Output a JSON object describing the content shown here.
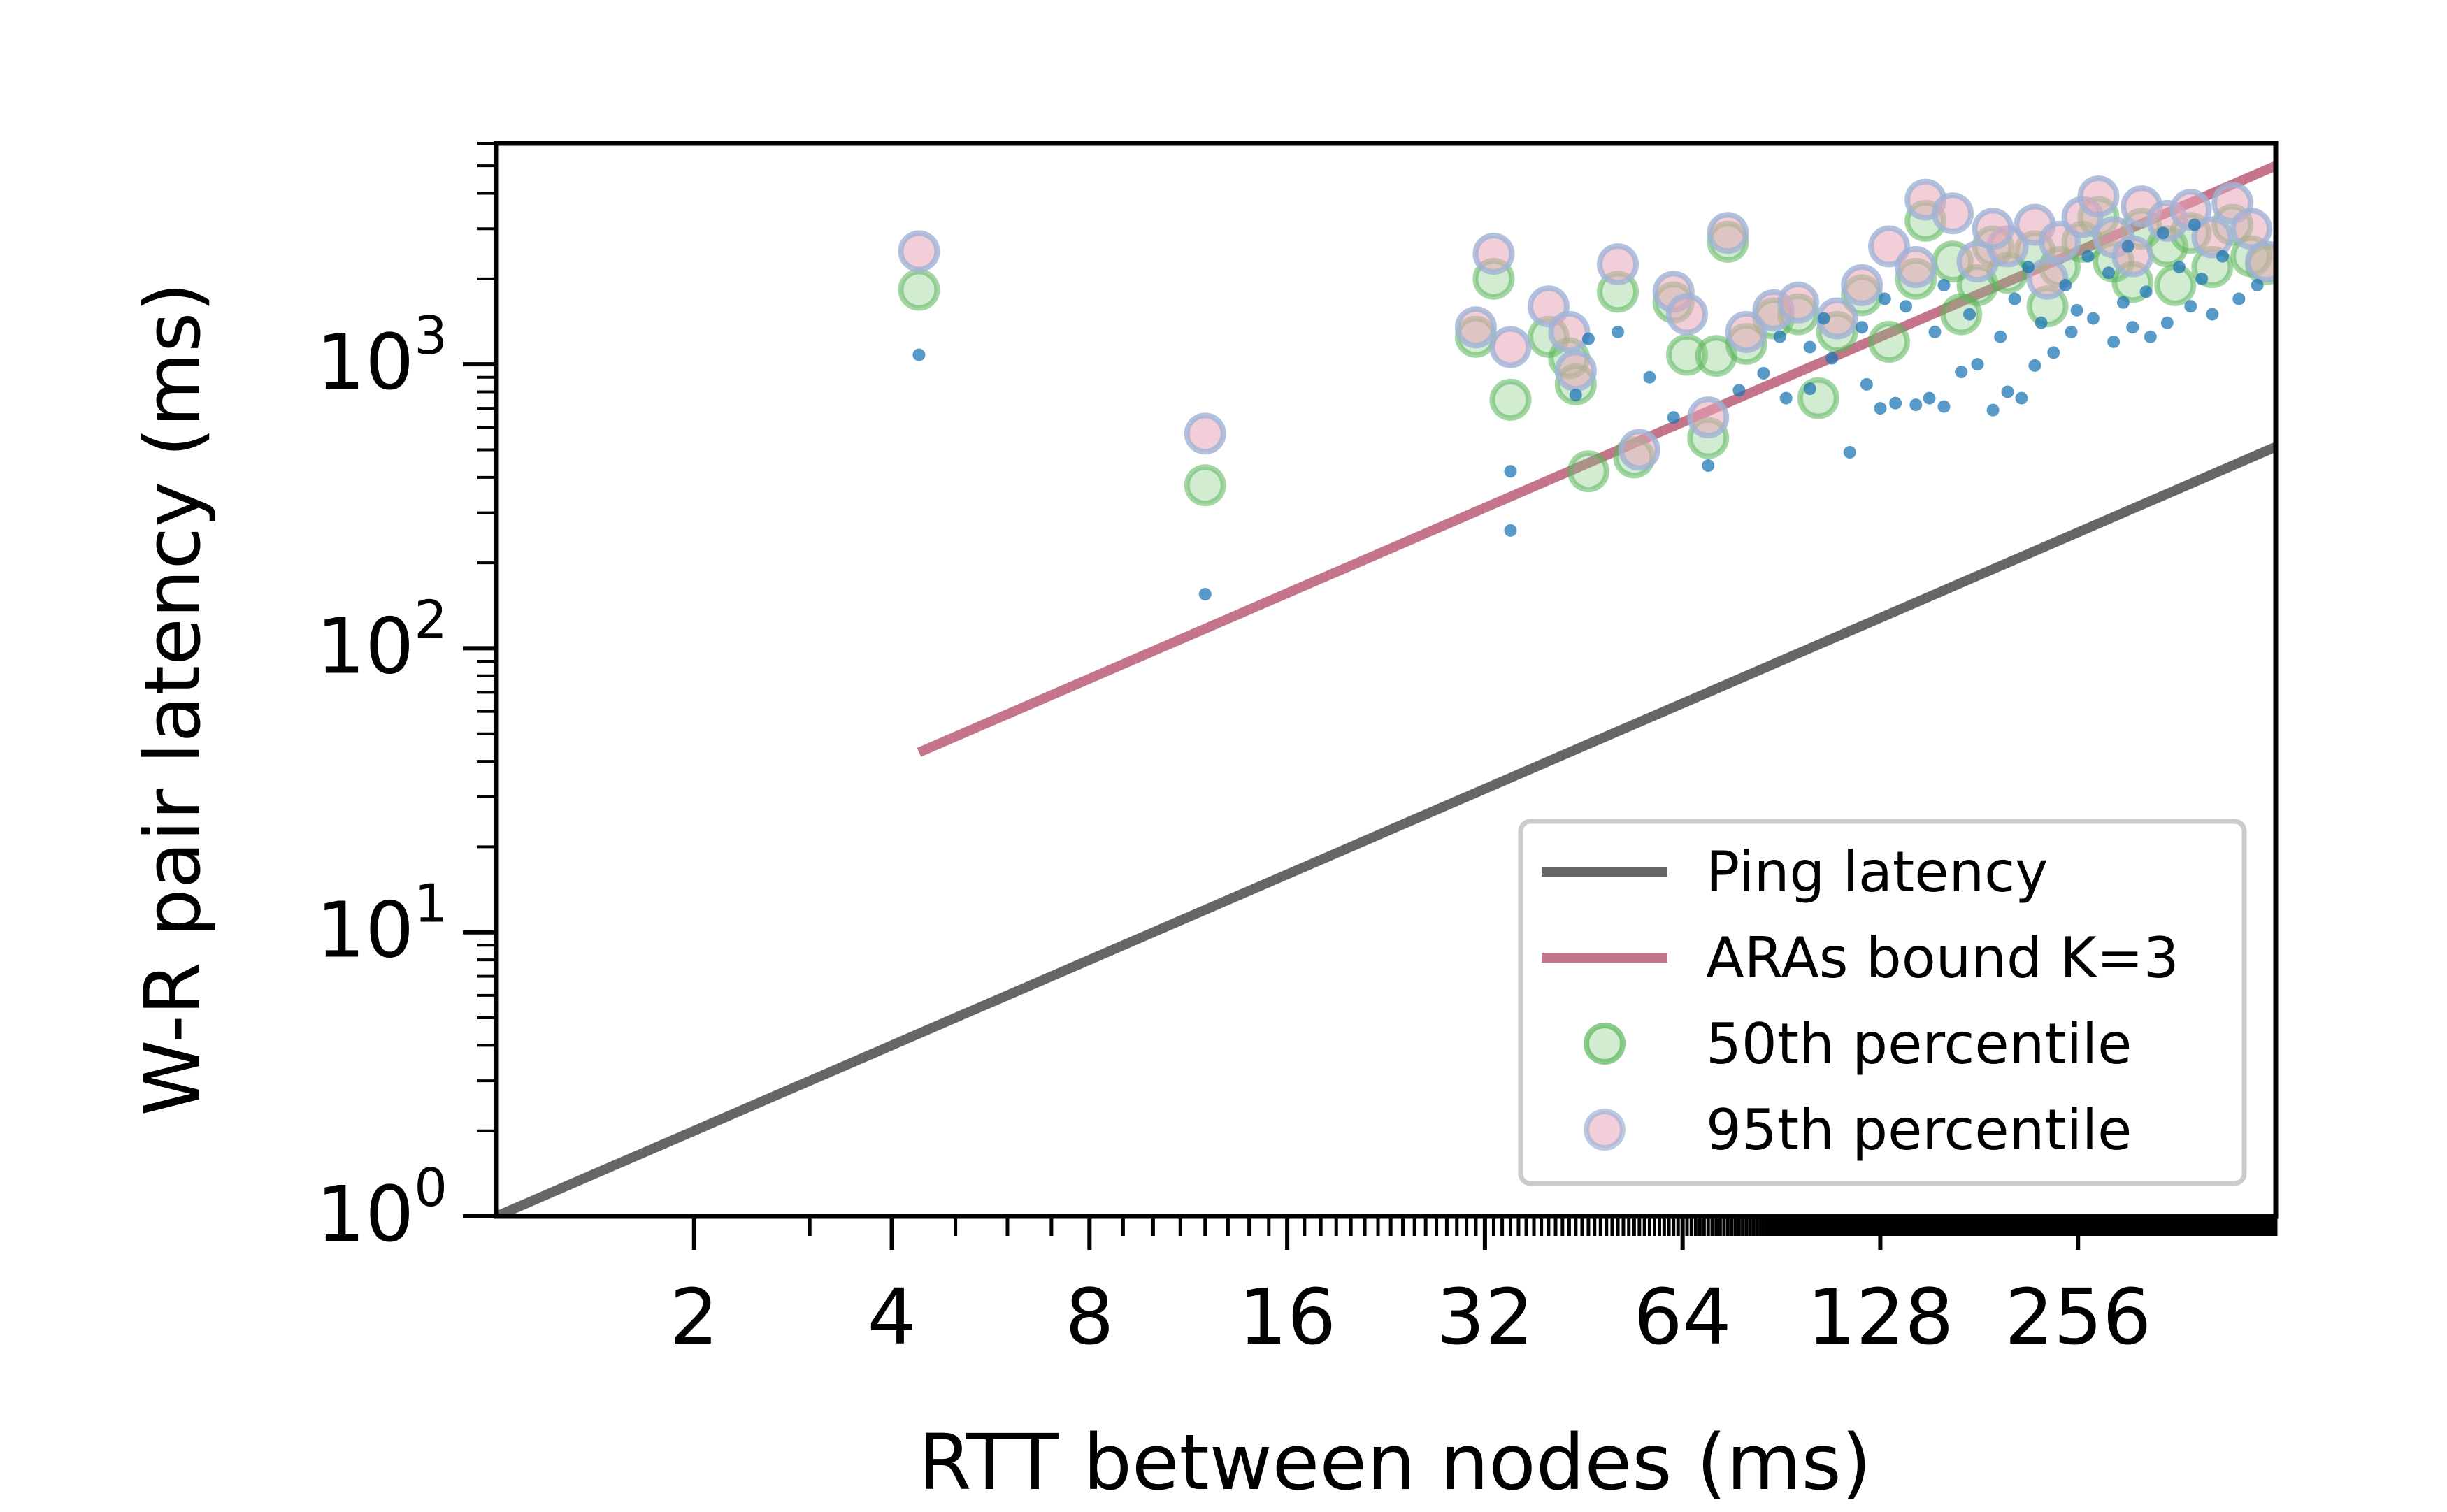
{
  "chart_data": {
    "type": "scatter",
    "xlabel": "RTT between nodes (ms)",
    "ylabel": "W-R pair latency (ms)",
    "xscale": "log2",
    "yscale": "log10",
    "xlim": [
      1,
      512
    ],
    "ylim": [
      1,
      6000
    ],
    "x_ticks": [
      {
        "value": 2,
        "label": "2"
      },
      {
        "value": 4,
        "label": "4"
      },
      {
        "value": 8,
        "label": "8"
      },
      {
        "value": 16,
        "label": "16"
      },
      {
        "value": 32,
        "label": "32"
      },
      {
        "value": 64,
        "label": "64"
      },
      {
        "value": 128,
        "label": "128"
      },
      {
        "value": 256,
        "label": "256"
      }
    ],
    "y_ticks": [
      {
        "value": 1,
        "base": "10",
        "exp": "0"
      },
      {
        "value": 10,
        "base": "10",
        "exp": "1"
      },
      {
        "value": 100,
        "base": "10",
        "exp": "2"
      },
      {
        "value": 1000,
        "base": "10",
        "exp": "3"
      }
    ],
    "grid": false,
    "legend_position": "lower-right",
    "legend": [
      {
        "label": "Ping latency",
        "kind": "line",
        "color": "#666666"
      },
      {
        "label": "ARAs bound K=3",
        "kind": "line",
        "color": "#c4758a"
      },
      {
        "label": "50th percentile",
        "kind": "marker",
        "color": "#7fc97f"
      },
      {
        "label": "95th percentile",
        "kind": "marker",
        "color": "#e8a5b8"
      }
    ],
    "lines": [
      {
        "name": "Ping latency",
        "color": "#666666",
        "x": [
          1,
          512
        ],
        "y": [
          1,
          512
        ]
      },
      {
        "name": "ARAs bound K=3",
        "color": "#c4758a",
        "x": [
          4.4,
          512
        ],
        "y": [
          43,
          5000
        ]
      }
    ],
    "series": [
      {
        "name": "50th percentile",
        "color": "#7fc97f",
        "points": [
          [
            4.4,
            1830
          ],
          [
            12,
            375
          ],
          [
            31,
            1250
          ],
          [
            33,
            2000
          ],
          [
            35,
            750
          ],
          [
            40,
            1250
          ],
          [
            43,
            1050
          ],
          [
            44,
            850
          ],
          [
            46,
            420
          ],
          [
            51,
            1800
          ],
          [
            54,
            470
          ],
          [
            62,
            1650
          ],
          [
            65,
            1080
          ],
          [
            70,
            550
          ],
          [
            72,
            1070
          ],
          [
            75,
            2700
          ],
          [
            80,
            1180
          ],
          [
            88,
            1450
          ],
          [
            96,
            1500
          ],
          [
            103,
            760
          ],
          [
            110,
            1300
          ],
          [
            120,
            1750
          ],
          [
            132,
            1200
          ],
          [
            145,
            2000
          ],
          [
            150,
            3200
          ],
          [
            165,
            2300
          ],
          [
            180,
            1900
          ],
          [
            200,
            2100
          ],
          [
            220,
            2500
          ],
          [
            240,
            2200
          ],
          [
            260,
            2700
          ],
          [
            290,
            2300
          ],
          [
            320,
            3000
          ],
          [
            350,
            2600
          ],
          [
            380,
            2900
          ],
          [
            410,
            2200
          ],
          [
            440,
            3100
          ],
          [
            470,
            2400
          ],
          [
            495,
            2250
          ],
          [
            230,
            1600
          ],
          [
            275,
            3300
          ],
          [
            310,
            1950
          ],
          [
            190,
            2600
          ],
          [
            170,
            1500
          ],
          [
            360,
            1900
          ]
        ]
      },
      {
        "name": "95th percentile",
        "color": "#e8a5b8",
        "points": [
          [
            4.4,
            2500
          ],
          [
            12,
            570
          ],
          [
            31,
            1350
          ],
          [
            33,
            2450
          ],
          [
            35,
            1150
          ],
          [
            40,
            1600
          ],
          [
            43,
            1300
          ],
          [
            44,
            950
          ],
          [
            51,
            2250
          ],
          [
            55,
            500
          ],
          [
            62,
            1800
          ],
          [
            65,
            1500
          ],
          [
            70,
            650
          ],
          [
            75,
            2900
          ],
          [
            80,
            1300
          ],
          [
            88,
            1550
          ],
          [
            96,
            1650
          ],
          [
            110,
            1450
          ],
          [
            120,
            1900
          ],
          [
            132,
            2600
          ],
          [
            145,
            2200
          ],
          [
            150,
            3800
          ],
          [
            165,
            3400
          ],
          [
            180,
            2300
          ],
          [
            200,
            2600
          ],
          [
            220,
            3100
          ],
          [
            240,
            2700
          ],
          [
            260,
            3300
          ],
          [
            290,
            2800
          ],
          [
            320,
            3600
          ],
          [
            350,
            3200
          ],
          [
            380,
            3500
          ],
          [
            410,
            2800
          ],
          [
            440,
            3700
          ],
          [
            470,
            3000
          ],
          [
            495,
            2300
          ],
          [
            230,
            2000
          ],
          [
            275,
            3900
          ],
          [
            310,
            2400
          ],
          [
            190,
            3000
          ]
        ]
      },
      {
        "name": "individual pairs",
        "color": "#1f77b4",
        "points": [
          [
            4.4,
            1080
          ],
          [
            12,
            155
          ],
          [
            35,
            420
          ],
          [
            35,
            260
          ],
          [
            44,
            780
          ],
          [
            46,
            1230
          ],
          [
            51,
            1300
          ],
          [
            57,
            900
          ],
          [
            62,
            650
          ],
          [
            70,
            440
          ],
          [
            78,
            810
          ],
          [
            85,
            930
          ],
          [
            92,
            760
          ],
          [
            100,
            820
          ],
          [
            108,
            1050
          ],
          [
            115,
            490
          ],
          [
            122,
            850
          ],
          [
            128,
            700
          ],
          [
            135,
            730
          ],
          [
            145,
            720
          ],
          [
            152,
            760
          ],
          [
            160,
            710
          ],
          [
            170,
            940
          ],
          [
            180,
            1000
          ],
          [
            190,
            690
          ],
          [
            200,
            800
          ],
          [
            210,
            760
          ],
          [
            220,
            990
          ],
          [
            235,
            1100
          ],
          [
            250,
            1300
          ],
          [
            270,
            1450
          ],
          [
            290,
            1200
          ],
          [
            310,
            1350
          ],
          [
            330,
            1250
          ],
          [
            350,
            1400
          ],
          [
            380,
            1600
          ],
          [
            410,
            1500
          ],
          [
            450,
            1700
          ],
          [
            480,
            1900
          ],
          [
            155,
            1300
          ],
          [
            175,
            1500
          ],
          [
            205,
            1700
          ],
          [
            245,
            1900
          ],
          [
            285,
            2100
          ],
          [
            325,
            1800
          ],
          [
            365,
            2200
          ],
          [
            395,
            2000
          ],
          [
            425,
            2400
          ],
          [
            140,
            1600
          ],
          [
            160,
            1900
          ],
          [
            215,
            2200
          ],
          [
            265,
            2400
          ],
          [
            305,
            2600
          ],
          [
            345,
            2900
          ],
          [
            385,
            3100
          ],
          [
            120,
            1350
          ],
          [
            100,
            1150
          ],
          [
            90,
            1250
          ],
          [
            105,
            1450
          ],
          [
            130,
            1700
          ],
          [
            195,
            1250
          ],
          [
            225,
            1400
          ],
          [
            255,
            1550
          ],
          [
            300,
            1650
          ]
        ]
      }
    ]
  }
}
